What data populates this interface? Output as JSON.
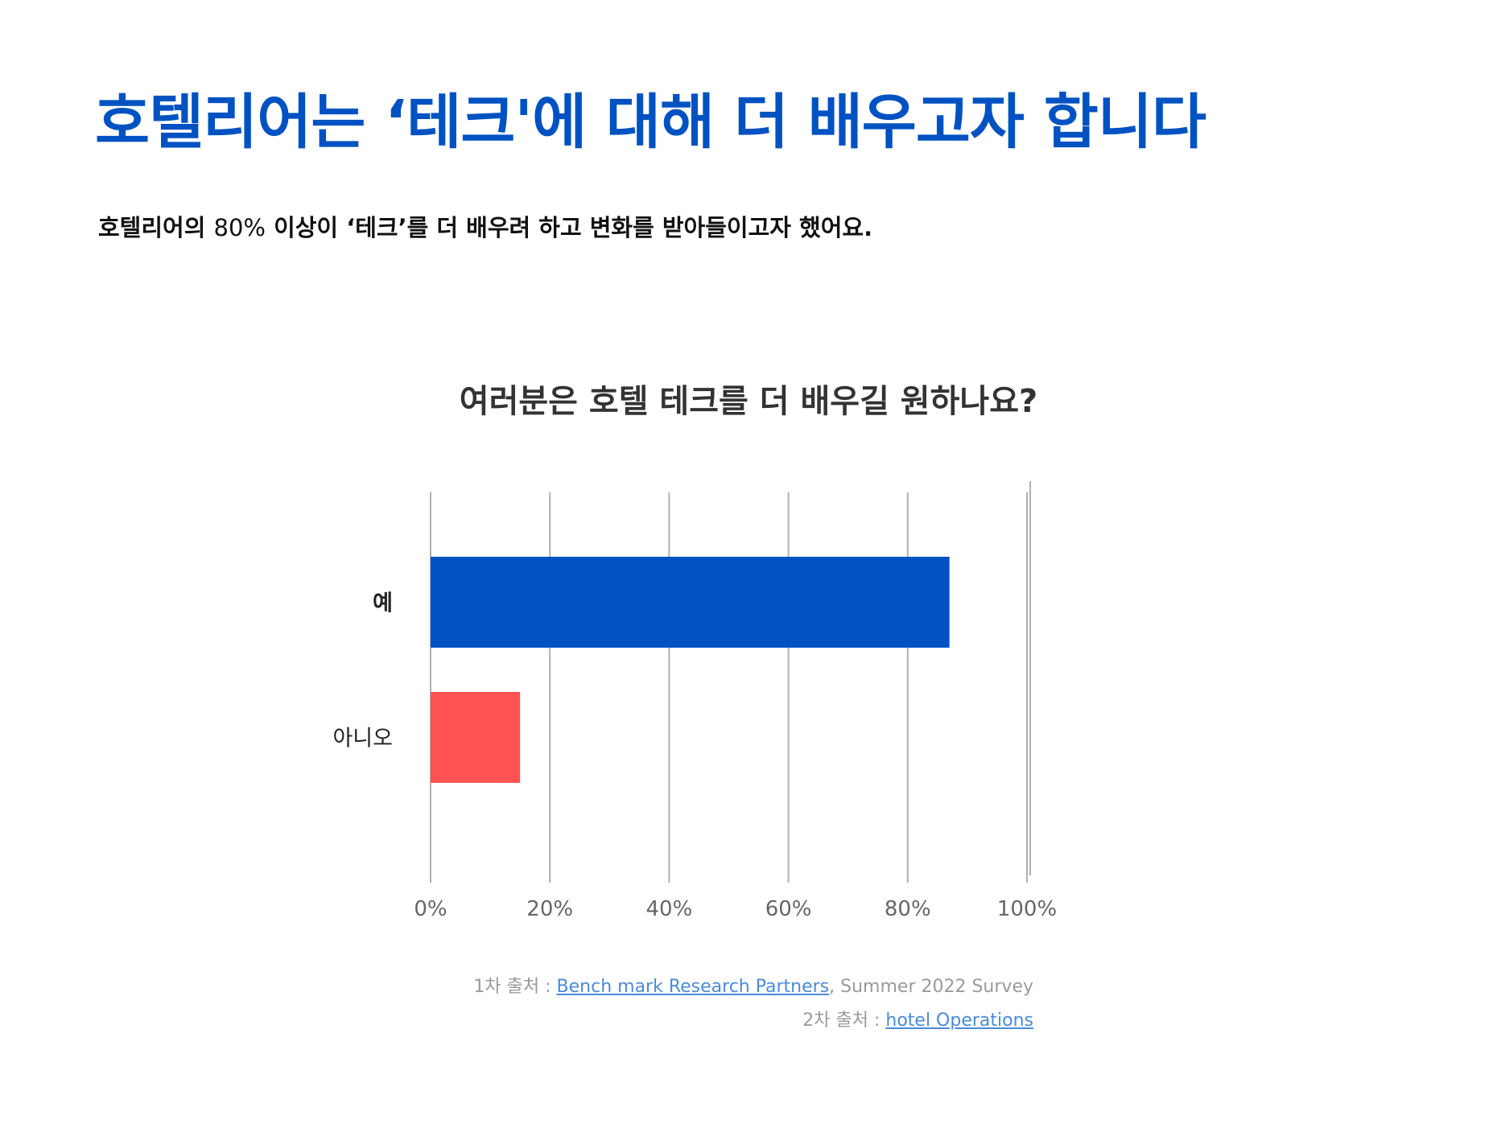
{
  "header": {
    "title": "호텔리어는 ‘테크'에 대해 더 배우고자 합니다",
    "subtitle_prefix": "호텔리어의 ",
    "subtitle_figure": "80%",
    "subtitle_suffix": " 이상이 ‘테크’를 더 배우려 하고 변화를 받아들이고자 했어요."
  },
  "chart_data": {
    "type": "bar",
    "orientation": "horizontal",
    "title": "여러분은 호텔 테크를 더 배우길 원하나요?",
    "categories": [
      "예",
      "아니오"
    ],
    "values": [
      87,
      15
    ],
    "colors": [
      "#0052c2",
      "#ff5252"
    ],
    "xlim": [
      0,
      100
    ],
    "x_ticks": [
      "0%",
      "20%",
      "40%",
      "60%",
      "80%",
      "100%"
    ],
    "grid": true
  },
  "sources": {
    "line1_prefix": "1차 출처 : ",
    "line1_link": "Bench mark Research Partners",
    "line1_suffix": ", Summer 2022 Survey",
    "line2_prefix": "2차 출처 : ",
    "line2_link": "hotel Operations"
  }
}
